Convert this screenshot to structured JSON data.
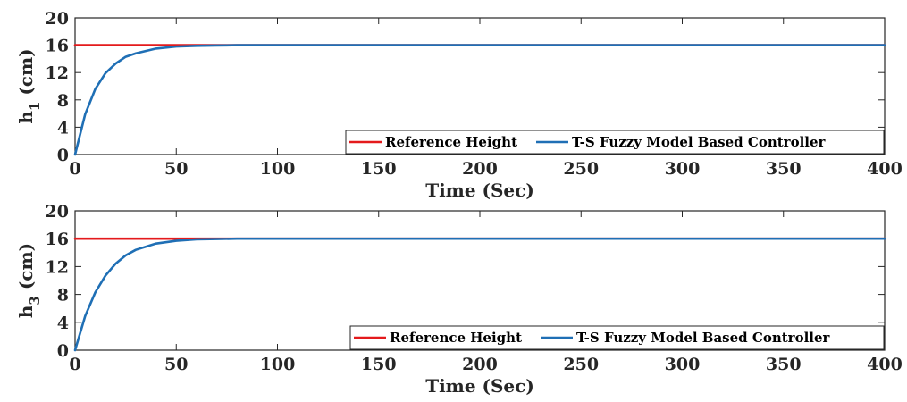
{
  "chart_data": [
    {
      "type": "line",
      "xlabel": "Time (Sec)",
      "ylabel": "h",
      "ylabel_sub": "1",
      "ylabel_unit": " (cm)",
      "xlim": [
        0,
        400
      ],
      "ylim": [
        0,
        20
      ],
      "xticks": [
        0,
        50,
        100,
        150,
        200,
        250,
        300,
        350,
        400
      ],
      "yticks": [
        0,
        4,
        8,
        12,
        16,
        20
      ],
      "grid": false,
      "legend_position": "bottom-right",
      "series": [
        {
          "name": "Reference Height",
          "color": "#e41a1c",
          "x": [
            0,
            400
          ],
          "y": [
            16,
            16
          ]
        },
        {
          "name": "T-S Fuzzy Model Based Controller",
          "color": "#1f6fb5",
          "x": [
            0,
            5,
            10,
            15,
            20,
            25,
            30,
            40,
            50,
            60,
            70,
            80,
            100,
            150,
            200,
            250,
            300,
            350,
            400
          ],
          "y": [
            0,
            5.9,
            9.6,
            11.9,
            13.3,
            14.3,
            14.8,
            15.5,
            15.8,
            15.9,
            15.95,
            16.0,
            16.0,
            16.0,
            16.0,
            16.0,
            16.0,
            16.0,
            16.0
          ]
        }
      ]
    },
    {
      "type": "line",
      "xlabel": "Time (Sec)",
      "ylabel": "h",
      "ylabel_sub": "3",
      "ylabel_unit": " (cm)",
      "xlim": [
        0,
        400
      ],
      "ylim": [
        0,
        20
      ],
      "xticks": [
        0,
        50,
        100,
        150,
        200,
        250,
        300,
        350,
        400
      ],
      "yticks": [
        0,
        4,
        8,
        12,
        16,
        20
      ],
      "grid": false,
      "legend_position": "bottom-right",
      "series": [
        {
          "name": "Reference Height",
          "color": "#e41a1c",
          "x": [
            0,
            400
          ],
          "y": [
            16,
            16
          ]
        },
        {
          "name": "T-S Fuzzy Model Based Controller",
          "color": "#1f6fb5",
          "x": [
            0,
            5,
            10,
            15,
            20,
            25,
            30,
            40,
            50,
            60,
            70,
            80,
            90,
            100,
            150,
            200,
            250,
            300,
            350,
            400
          ],
          "y": [
            0,
            4.9,
            8.3,
            10.7,
            12.4,
            13.6,
            14.4,
            15.3,
            15.7,
            15.9,
            15.95,
            16.0,
            16.0,
            16.0,
            16.0,
            16.0,
            16.0,
            16.0,
            16.0,
            16.0
          ]
        }
      ]
    }
  ]
}
